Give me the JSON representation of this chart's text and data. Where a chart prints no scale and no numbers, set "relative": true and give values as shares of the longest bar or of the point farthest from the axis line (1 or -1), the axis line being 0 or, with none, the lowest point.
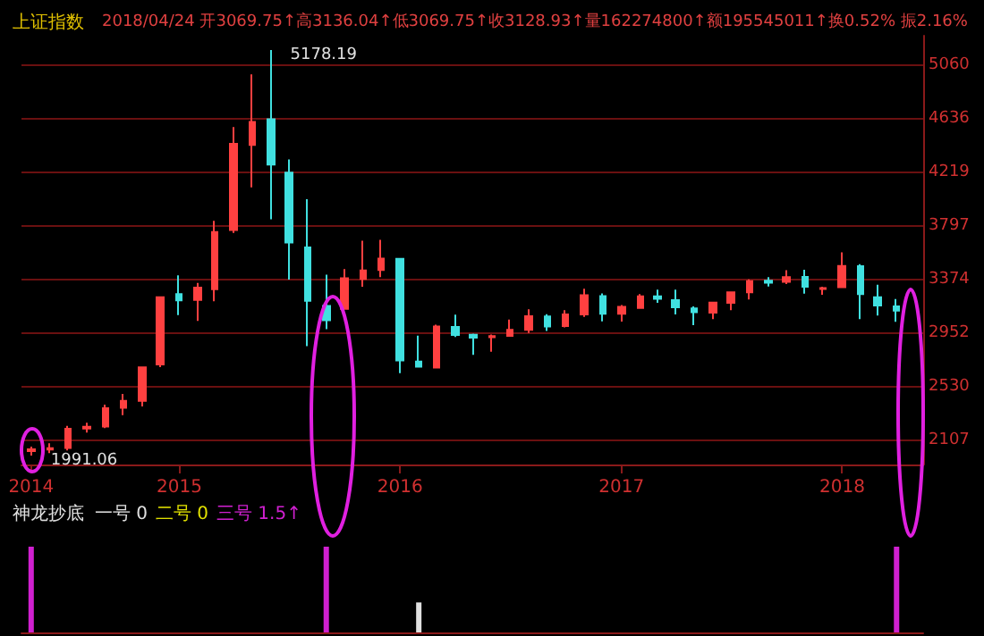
{
  "chart_data": [
    {
      "type": "candlestick",
      "title": "上证指数",
      "subtitle": "2018/04/24 开3069.75↑高3136.04↑低3069.75↑收3128.93↑量162274800↑额195545011↑换0.52% 振2.16%",
      "x": [
        "2014-05",
        "2014-06",
        "2014-07",
        "2014-08",
        "2014-09",
        "2014-10",
        "2014-11",
        "2014-12",
        "2015-01",
        "2015-02",
        "2015-03",
        "2015-04",
        "2015-05",
        "2015-06",
        "2015-07",
        "2015-08",
        "2015-09",
        "2015-10",
        "2015-11",
        "2015-12",
        "2016-01",
        "2016-02",
        "2016-03",
        "2016-04",
        "2016-05",
        "2016-06",
        "2016-07",
        "2016-08",
        "2016-09",
        "2016-10",
        "2016-11",
        "2016-12",
        "2017-01",
        "2017-02",
        "2017-03",
        "2017-04",
        "2017-05",
        "2017-06",
        "2017-07",
        "2017-08",
        "2017-09",
        "2017-10",
        "2017-11",
        "2017-12",
        "2018-01",
        "2018-02",
        "2018-03",
        "2018-04"
      ],
      "ohlc": [
        [
          2026,
          2061,
          1991.06,
          2039
        ],
        [
          2038,
          2087,
          2010,
          2048
        ],
        [
          2050,
          2223,
          2030,
          2201
        ],
        [
          2203,
          2248,
          2171,
          2217
        ],
        [
          2219,
          2391,
          2206,
          2363
        ],
        [
          2365,
          2474,
          2308,
          2420
        ],
        [
          2420,
          2683,
          2376,
          2683
        ],
        [
          2706,
          3239,
          2686,
          3234
        ],
        [
          3259,
          3406,
          3095,
          3210
        ],
        [
          3213,
          3347,
          3049,
          3310
        ],
        [
          3298,
          3835,
          3203,
          3748
        ],
        [
          3763,
          4572,
          3740,
          4441
        ],
        [
          4432,
          4986,
          4099,
          4612
        ],
        [
          4633,
          5178.19,
          3847,
          4277
        ],
        [
          4214,
          4317,
          3373,
          3664
        ],
        [
          3626,
          4006,
          2851,
          3206
        ],
        [
          3166,
          3412,
          2983,
          3053
        ],
        [
          3144,
          3456,
          3139,
          3383
        ],
        [
          3378,
          3678,
          3318,
          3445
        ],
        [
          3449,
          3685,
          3392,
          3539
        ],
        [
          3536,
          3539,
          2638,
          2738
        ],
        [
          2730,
          2933,
          2682,
          2688
        ],
        [
          2682,
          3018,
          2680,
          3004
        ],
        [
          3001,
          3097,
          2922,
          2938
        ],
        [
          2939,
          2949,
          2781,
          2917
        ],
        [
          2920,
          2942,
          2807,
          2930
        ],
        [
          2931,
          3059,
          2929,
          2979
        ],
        [
          2979,
          3140,
          2953,
          3085
        ],
        [
          3083,
          3101,
          2969,
          3005
        ],
        [
          3009,
          3132,
          2997,
          3100
        ],
        [
          3100,
          3301,
          3080,
          3250
        ],
        [
          3244,
          3264,
          3045,
          3104
        ],
        [
          3105,
          3174,
          3044,
          3159
        ],
        [
          3151,
          3260,
          3150,
          3242
        ],
        [
          3241,
          3295,
          3190,
          3223
        ],
        [
          3211,
          3295,
          3100,
          3155
        ],
        [
          3147,
          3162,
          3016,
          3117
        ],
        [
          3113,
          3196,
          3062,
          3192
        ],
        [
          3191,
          3276,
          3132,
          3273
        ],
        [
          3274,
          3375,
          3217,
          3361
        ],
        [
          3365,
          3392,
          3319,
          3349
        ],
        [
          3356,
          3447,
          3339,
          3393
        ],
        [
          3395,
          3450,
          3262,
          3317
        ],
        [
          3300,
          3317,
          3254,
          3307
        ],
        [
          3314,
          3587,
          3307,
          3481
        ],
        [
          3478,
          3495,
          3062,
          3259
        ],
        [
          3235,
          3333,
          3091,
          3169
        ],
        [
          3163,
          3220,
          3041,
          3129
        ]
      ],
      "xlim": [
        "2014-04-15",
        "2018-05-15"
      ],
      "xticks": [
        {
          "value": "2014-05",
          "label": "2014"
        },
        "2015",
        "2016",
        "2017",
        "2018"
      ],
      "ylim": [
        1920,
        5290
      ],
      "yticks": [
        2107,
        2530,
        2952,
        3374,
        3797,
        4219,
        4636,
        5060
      ],
      "grid": "y",
      "annotations": [
        {
          "text": "5178.19",
          "x": "2015-06",
          "y": 5178.19
        },
        {
          "text": "1991.06",
          "x": "2014-05",
          "y": 1991.06
        }
      ]
    },
    {
      "type": "bar",
      "title": "神龙抄底",
      "x": [
        "2014-05",
        "2015-09",
        "2016-02",
        "2018-04"
      ],
      "values": [
        1,
        1,
        0.35,
        1
      ],
      "colors": [
        "#d020d0",
        "#d020d0",
        "#e0e0e0",
        "#d020d0"
      ],
      "relative": true,
      "xlim": [
        "2014-04-15",
        "2018-05-15"
      ],
      "annotations": [
        "一号 0",
        "二号 0",
        "三号 1.5↑"
      ]
    }
  ]
}
